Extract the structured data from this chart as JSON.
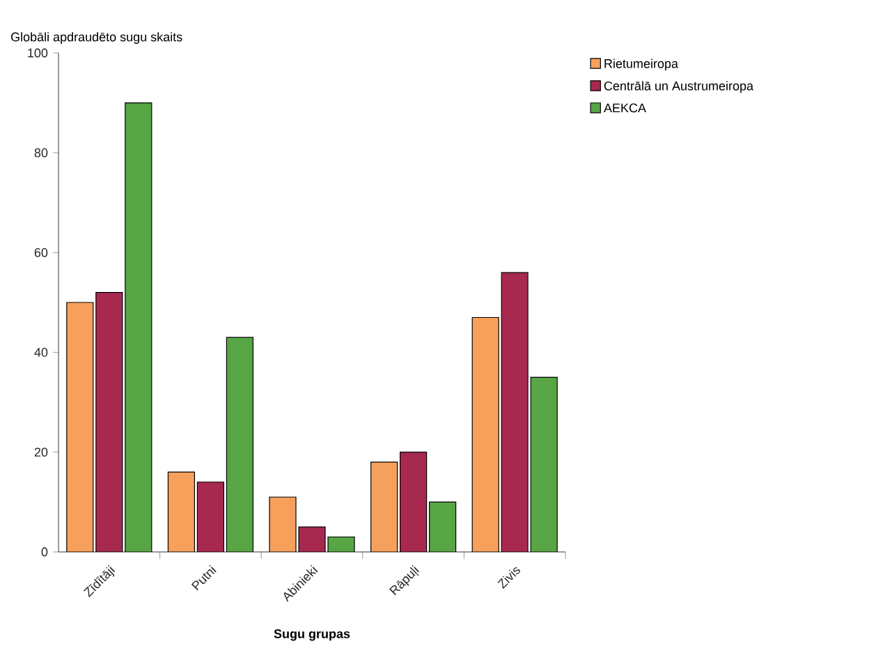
{
  "chart_data": {
    "type": "bar",
    "ylabel": "Globāli apdraudēto sugu skaits",
    "xlabel": "Sugu grupas",
    "categories": [
      "Zīdītāji",
      "Putni",
      "Abinieki",
      "Rāpuļi",
      "Zivis"
    ],
    "series": [
      {
        "name": "Rietumeiropa",
        "color": "#f7a05c",
        "values": [
          50,
          16,
          11,
          18,
          47
        ]
      },
      {
        "name": "Centrālā un Austrumeiropa",
        "color": "#a8294f",
        "values": [
          52,
          14,
          5,
          20,
          56
        ]
      },
      {
        "name": "AEKCA",
        "color": "#58a545",
        "values": [
          90,
          43,
          3,
          10,
          35
        ]
      }
    ],
    "ylim": [
      0,
      100
    ],
    "yticks": [
      0,
      20,
      40,
      60,
      80,
      100
    ],
    "grid": false,
    "legend": "top right"
  }
}
